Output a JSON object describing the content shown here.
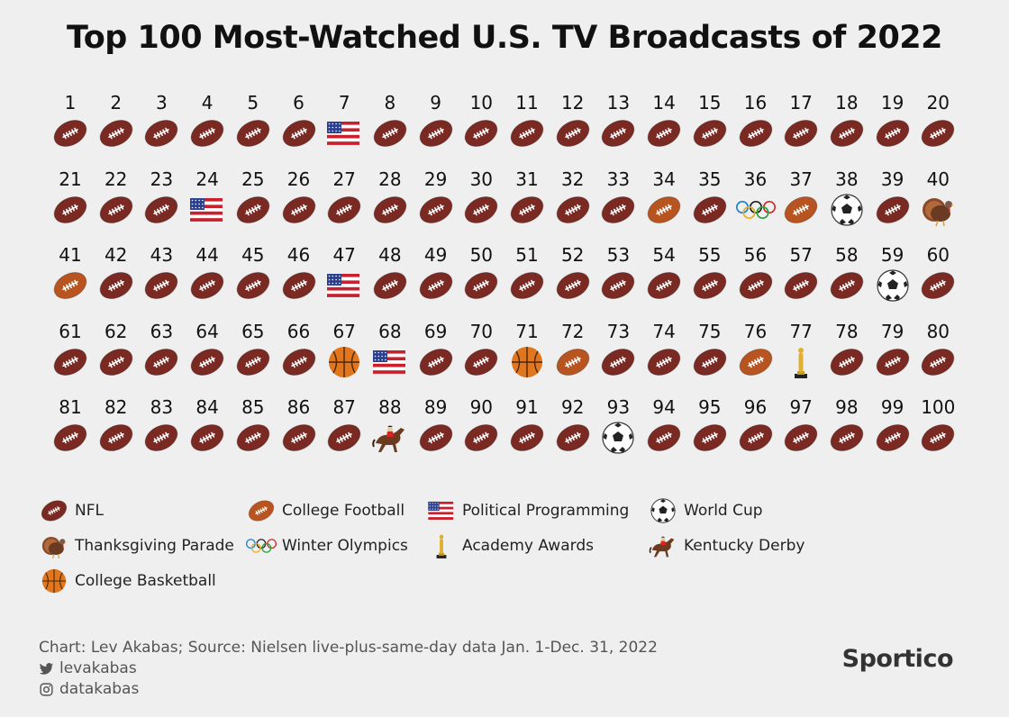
{
  "chart_data": {
    "type": "table",
    "title": "Top 100 Most-Watched U.S. TV Broadcasts of 2022",
    "ranks": [
      1,
      2,
      3,
      4,
      5,
      6,
      7,
      8,
      9,
      10,
      11,
      12,
      13,
      14,
      15,
      16,
      17,
      18,
      19,
      20,
      21,
      22,
      23,
      24,
      25,
      26,
      27,
      28,
      29,
      30,
      31,
      32,
      33,
      34,
      35,
      36,
      37,
      38,
      39,
      40,
      41,
      42,
      43,
      44,
      45,
      46,
      47,
      48,
      49,
      50,
      51,
      52,
      53,
      54,
      55,
      56,
      57,
      58,
      59,
      60,
      61,
      62,
      63,
      64,
      65,
      66,
      67,
      68,
      69,
      70,
      71,
      72,
      73,
      74,
      75,
      76,
      77,
      78,
      79,
      80,
      81,
      82,
      83,
      84,
      85,
      86,
      87,
      88,
      89,
      90,
      91,
      92,
      93,
      94,
      95,
      96,
      97,
      98,
      99,
      100
    ],
    "categories_by_rank": [
      "nfl",
      "nfl",
      "nfl",
      "nfl",
      "nfl",
      "nfl",
      "political",
      "nfl",
      "nfl",
      "nfl",
      "nfl",
      "nfl",
      "nfl",
      "nfl",
      "nfl",
      "nfl",
      "nfl",
      "nfl",
      "nfl",
      "nfl",
      "nfl",
      "nfl",
      "nfl",
      "political",
      "nfl",
      "nfl",
      "nfl",
      "nfl",
      "nfl",
      "nfl",
      "nfl",
      "nfl",
      "nfl",
      "college_football",
      "nfl",
      "olympics",
      "college_football",
      "world_cup",
      "nfl",
      "thanksgiving",
      "college_football",
      "nfl",
      "nfl",
      "nfl",
      "nfl",
      "nfl",
      "political",
      "nfl",
      "nfl",
      "nfl",
      "nfl",
      "nfl",
      "nfl",
      "nfl",
      "nfl",
      "nfl",
      "nfl",
      "nfl",
      "world_cup",
      "nfl",
      "nfl",
      "nfl",
      "nfl",
      "nfl",
      "nfl",
      "nfl",
      "college_basketball",
      "political",
      "nfl",
      "nfl",
      "college_basketball",
      "college_football",
      "nfl",
      "nfl",
      "nfl",
      "college_football",
      "academy_awards",
      "nfl",
      "nfl",
      "nfl",
      "nfl",
      "nfl",
      "nfl",
      "nfl",
      "nfl",
      "nfl",
      "nfl",
      "kentucky_derby",
      "nfl",
      "nfl",
      "nfl",
      "nfl",
      "world_cup",
      "nfl",
      "nfl",
      "nfl",
      "nfl",
      "nfl",
      "nfl",
      "nfl"
    ],
    "legend": [
      {
        "key": "nfl",
        "label": "NFL"
      },
      {
        "key": "college_football",
        "label": "College Football"
      },
      {
        "key": "political",
        "label": "Political Programming"
      },
      {
        "key": "world_cup",
        "label": "World Cup"
      },
      {
        "key": "thanksgiving",
        "label": "Thanksgiving Parade"
      },
      {
        "key": "olympics",
        "label": "Winter Olympics"
      },
      {
        "key": "academy_awards",
        "label": "Academy Awards"
      },
      {
        "key": "kentucky_derby",
        "label": "Kentucky Derby"
      },
      {
        "key": "college_basketball",
        "label": "College Basketball"
      }
    ]
  },
  "icons": {
    "nfl": "nfl-football-icon",
    "college_football": "college-football-icon",
    "political": "us-flag-icon",
    "world_cup": "soccer-ball-icon",
    "thanksgiving": "turkey-icon",
    "olympics": "olympic-rings-icon",
    "academy_awards": "oscar-statuette-icon",
    "kentucky_derby": "horse-racing-icon",
    "college_basketball": "basketball-icon"
  },
  "colors": {
    "background": "#efefef",
    "nfl": "#7a2a22",
    "college_football": "#b8541f",
    "basketball": "#e0761e"
  },
  "footer": {
    "source": "Chart: Lev Akabas; Source: Nielsen live-plus-same-day data Jan. 1-Dec. 31, 2022",
    "twitter": "levakabas",
    "instagram": "datakabas",
    "brand": "Sportico"
  }
}
